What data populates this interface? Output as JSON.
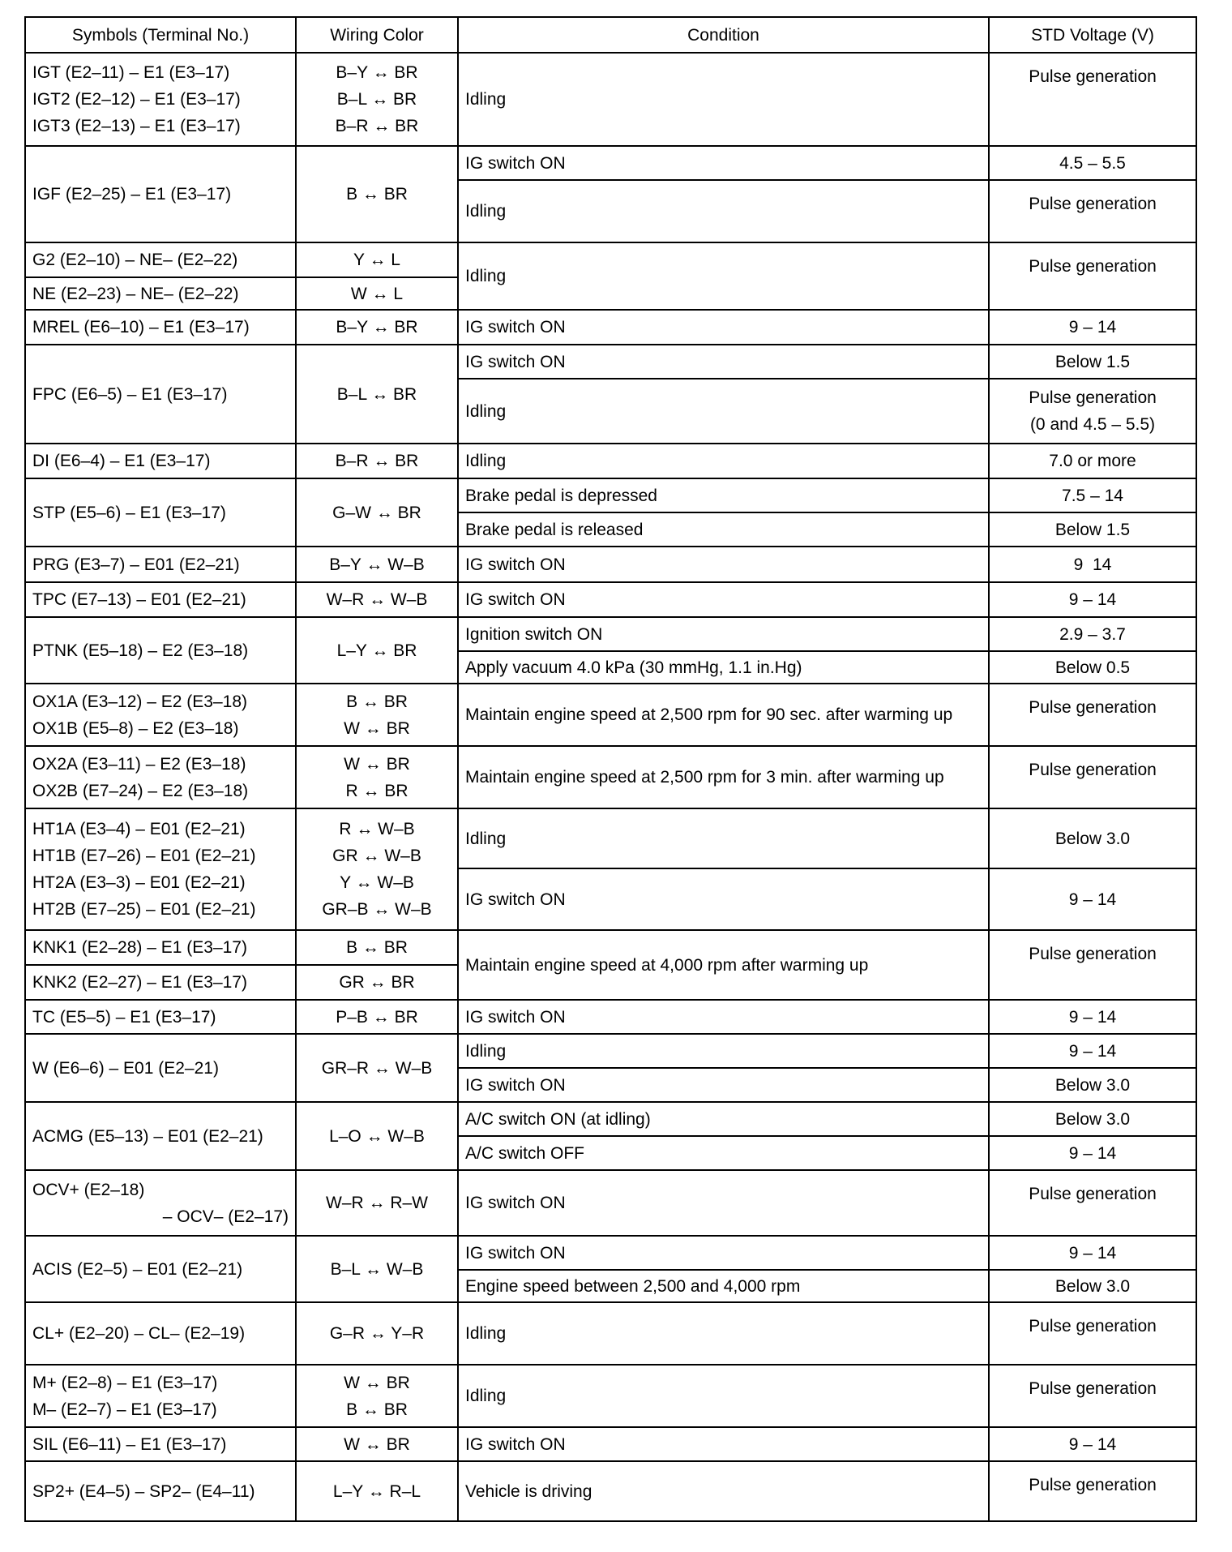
{
  "header": {
    "symbols": "Symbols (Terminal No.)",
    "wiring": "Wiring Color",
    "condition": "Condition",
    "voltage": "STD Voltage (V)"
  },
  "g": [
    {
      "sym": [
        "IGT (E2–11) – E1 (E3–17)",
        "IGT2 (E2–12) – E1 (E3–17)",
        "IGT3 (E2–13) – E1 (E3–17)"
      ],
      "wire": [
        "B–Y ↔ BR",
        "B–L ↔ BR",
        "B–R ↔ BR"
      ],
      "cond": [
        {
          "c": "Idling",
          "v": "Pulse generation"
        }
      ]
    },
    {
      "sym": [
        "IGF (E2–25) – E1 (E3–17)"
      ],
      "wire": [
        "B ↔ BR"
      ],
      "cond": [
        {
          "c": "IG switch ON",
          "v": "4.5 – 5.5"
        },
        {
          "c": "Idling",
          "v": "Pulse generation"
        }
      ]
    },
    {
      "sym": [
        "G2 (E2–10) – NE– (E2–22)",
        "NE (E2–23) – NE– (E2–22)"
      ],
      "wire": [
        "Y ↔ L",
        "W ↔ L"
      ],
      "cond": [
        {
          "c": "Idling",
          "v": "Pulse generation"
        }
      ]
    },
    {
      "sym": [
        "MREL (E6–10) – E1 (E3–17)"
      ],
      "wire": [
        "B–Y ↔ BR"
      ],
      "cond": [
        {
          "c": "IG switch ON",
          "v": "9 – 14"
        }
      ]
    },
    {
      "sym": [
        "FPC (E6–5) – E1 (E3–17)"
      ],
      "wire": [
        "B–L ↔ BR"
      ],
      "cond": [
        {
          "c": "IG switch ON",
          "v": "Below 1.5"
        },
        {
          "c": "Idling",
          "v": "Pulse generation",
          "v2": "(0 and 4.5 – 5.5)"
        }
      ]
    },
    {
      "sym": [
        "DI (E6–4) – E1 (E3–17)"
      ],
      "wire": [
        "B–R ↔ BR"
      ],
      "cond": [
        {
          "c": "Idling",
          "v": "7.0 or more"
        }
      ]
    },
    {
      "sym": [
        "STP (E5–6) – E1 (E3–17)"
      ],
      "wire": [
        "G–W ↔ BR"
      ],
      "cond": [
        {
          "c": "Brake pedal is depressed",
          "v": "7.5 – 14"
        },
        {
          "c": "Brake pedal is released",
          "v": "Below 1.5"
        }
      ]
    },
    {
      "sym": [
        "PRG (E3–7) – E01 (E2–21)"
      ],
      "wire": [
        "B–Y ↔ W–B"
      ],
      "cond": [
        {
          "c": "IG switch ON",
          "v": "9  14"
        }
      ]
    },
    {
      "sym": [
        "TPC (E7–13) – E01 (E2–21)"
      ],
      "wire": [
        "W–R ↔ W–B"
      ],
      "cond": [
        {
          "c": "IG switch ON",
          "v": "9 – 14"
        }
      ]
    },
    {
      "sym": [
        "PTNK (E5–18) – E2 (E3–18)"
      ],
      "wire": [
        "L–Y ↔ BR"
      ],
      "cond": [
        {
          "c": "Ignition switch ON",
          "v": "2.9 – 3.7"
        },
        {
          "c": "Apply vacuum 4.0 kPa (30 mmHg, 1.1 in.Hg)",
          "v": "Below 0.5"
        }
      ]
    },
    {
      "sym": [
        "OX1A (E3–12) – E2 (E3–18)",
        "OX1B (E5–8) – E2 (E3–18)"
      ],
      "wire": [
        "B ↔ BR",
        "W ↔ BR"
      ],
      "cond": [
        {
          "c": "Maintain engine speed at 2,500 rpm for 90 sec. after warming up",
          "v": "Pulse generation"
        }
      ]
    },
    {
      "sym": [
        "OX2A (E3–11) – E2 (E3–18)",
        "OX2B (E7–24) – E2 (E3–18)"
      ],
      "wire": [
        "W ↔ BR",
        "R ↔ BR"
      ],
      "cond": [
        {
          "c": "Maintain engine speed at 2,500 rpm for 3 min. after warming up",
          "v": "Pulse generation"
        }
      ]
    },
    {
      "sym": [
        "HT1A (E3–4) – E01 (E2–21)",
        "HT1B (E7–26) – E01 (E2–21)",
        "HT2A (E3–3) – E01 (E2–21)",
        "HT2B (E7–25) – E01 (E2–21)"
      ],
      "wire": [
        "R ↔ W–B",
        "GR ↔ W–B",
        "Y ↔ W–B",
        "GR–B ↔ W–B"
      ],
      "cond": [
        {
          "c": "Idling",
          "v": "Below 3.0"
        },
        {
          "c": "IG switch ON",
          "v": "9 – 14"
        }
      ]
    },
    {
      "sym": [
        "KNK1 (E2–28) – E1 (E3–17)",
        "KNK2 (E2–27) – E1 (E3–17)"
      ],
      "wire": [
        "B ↔ BR",
        "GR ↔ BR"
      ],
      "cond": [
        {
          "c": "Maintain engine speed at 4,000 rpm after warming up",
          "v": "Pulse generation"
        }
      ]
    },
    {
      "sym": [
        "TC (E5–5) – E1 (E3–17)"
      ],
      "wire": [
        "P–B ↔ BR"
      ],
      "cond": [
        {
          "c": "IG switch ON",
          "v": "9 – 14"
        }
      ]
    },
    {
      "sym": [
        "W (E6–6) – E01 (E2–21)"
      ],
      "wire": [
        "GR–R ↔ W–B"
      ],
      "cond": [
        {
          "c": "Idling",
          "v": "9 – 14"
        },
        {
          "c": "IG switch ON",
          "v": "Below 3.0"
        }
      ]
    },
    {
      "sym": [
        "ACMG (E5–13) – E01 (E2–21)"
      ],
      "wire": [
        "L–O ↔ W–B"
      ],
      "cond": [
        {
          "c": "A/C switch ON (at idling)",
          "v": "Below 3.0"
        },
        {
          "c": "A/C switch OFF",
          "v": "9 – 14"
        }
      ]
    },
    {
      "sym": [
        "OCV+ (E2–18)",
        "– OCV– (E2–17)"
      ],
      "wire": [
        "W–R ↔ R–W"
      ],
      "cond": [
        {
          "c": "IG switch ON",
          "v": "Pulse generation"
        }
      ]
    },
    {
      "sym": [
        "ACIS (E2–5) – E01 (E2–21)"
      ],
      "wire": [
        "B–L ↔ W–B"
      ],
      "cond": [
        {
          "c": "IG switch ON",
          "v": "9 – 14"
        },
        {
          "c": "Engine speed between 2,500 and 4,000 rpm",
          "v": "Below 3.0"
        }
      ]
    },
    {
      "sym": [
        "CL+ (E2–20) – CL– (E2–19)"
      ],
      "wire": [
        "G–R ↔ Y–R"
      ],
      "cond": [
        {
          "c": "Idling",
          "v": "Pulse generation"
        }
      ]
    },
    {
      "sym": [
        "M+ (E2–8) – E1 (E3–17)",
        "M– (E2–7) – E1 (E3–17)"
      ],
      "wire": [
        "W ↔ BR",
        "B ↔ BR"
      ],
      "cond": [
        {
          "c": "Idling",
          "v": "Pulse generation"
        }
      ]
    },
    {
      "sym": [
        "SIL (E6–11) – E1 (E3–17)"
      ],
      "wire": [
        "W ↔ BR"
      ],
      "cond": [
        {
          "c": "IG switch ON",
          "v": "9 – 14"
        }
      ]
    },
    {
      "sym": [
        "SP2+ (E4–5) – SP2– (E4–11)"
      ],
      "wire": [
        "L–Y ↔ R–L"
      ],
      "cond": [
        {
          "c": "Vehicle is driving",
          "v": "Pulse generation"
        }
      ]
    }
  ]
}
